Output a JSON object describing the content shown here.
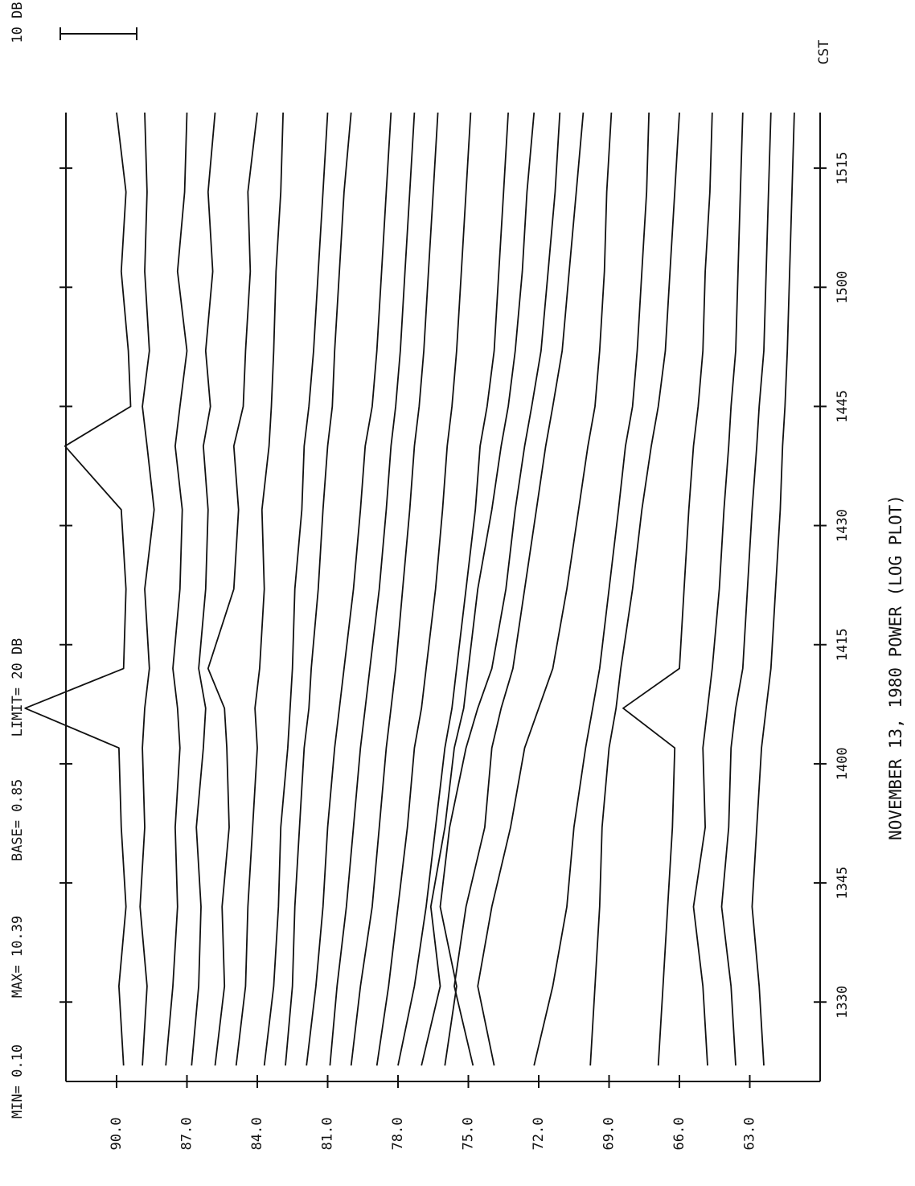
{
  "chart_data": {
    "type": "line",
    "title": "NOVEMBER 13, 1980 POWER (LOG PLOT)",
    "annotations": [
      "MIN= 0.10",
      "MAX= 10.39",
      "BASE= 0.85",
      "LIMIT= 20 DB"
    ],
    "scale_label": "10 DB",
    "time_zone": "CST",
    "x": [
      802,
      812,
      822,
      832,
      842,
      847,
      852,
      862,
      872,
      880,
      885,
      892,
      902,
      912,
      922
    ],
    "xlim": [
      800,
      922
    ],
    "xticks": [
      {
        "value": 810,
        "label": "1330"
      },
      {
        "value": 825,
        "label": "1345"
      },
      {
        "value": 840,
        "label": "1400"
      },
      {
        "value": 855,
        "label": "1415"
      },
      {
        "value": 870,
        "label": "1430"
      },
      {
        "value": 885,
        "label": "1445"
      },
      {
        "value": 900,
        "label": "1500"
      },
      {
        "value": 915,
        "label": "1515"
      }
    ],
    "ylim": [
      60.0,
      92.16
    ],
    "yticks": [
      {
        "value": 90,
        "label": "90.0"
      },
      {
        "value": 87,
        "label": "87.0"
      },
      {
        "value": 84,
        "label": "84.0"
      },
      {
        "value": 81,
        "label": "81.0"
      },
      {
        "value": 78,
        "label": "78.0"
      },
      {
        "value": 75,
        "label": "75.0"
      },
      {
        "value": 72,
        "label": "72.0"
      },
      {
        "value": 69,
        "label": "69.0"
      },
      {
        "value": 66,
        "label": "66.0"
      },
      {
        "value": 63,
        "label": "63.0"
      }
    ],
    "color": "#111111",
    "series": [
      {
        "values": [
          89.7,
          89.9,
          89.6,
          89.8,
          89.9,
          93.9,
          89.7,
          89.6,
          89.8,
          92.2,
          89.4,
          89.5,
          89.8,
          89.6,
          90.0
        ]
      },
      {
        "values": [
          88.9,
          88.7,
          89.0,
          88.8,
          88.9,
          88.8,
          88.6,
          88.8,
          88.4,
          88.7,
          88.9,
          88.6,
          88.8,
          88.7,
          88.8
        ]
      },
      {
        "values": [
          87.9,
          87.6,
          87.4,
          87.5,
          87.3,
          87.4,
          87.6,
          87.3,
          87.2,
          87.5,
          87.3,
          87.0,
          87.4,
          87.1,
          87.0
        ]
      },
      {
        "values": [
          86.8,
          86.5,
          86.4,
          86.6,
          86.3,
          86.2,
          86.5,
          86.2,
          86.1,
          86.3,
          86.0,
          86.2,
          85.9,
          86.1,
          85.8
        ]
      },
      {
        "values": [
          85.8,
          85.4,
          85.5,
          85.2,
          85.3,
          85.4,
          86.1,
          85.0,
          84.8,
          85.0,
          84.6,
          84.5,
          84.3,
          84.4,
          84.0
        ]
      },
      {
        "values": [
          84.9,
          84.5,
          84.4,
          84.2,
          84.0,
          84.1,
          83.9,
          83.7,
          83.8,
          83.5,
          83.4,
          83.3,
          83.2,
          83.0,
          82.9
        ]
      },
      {
        "values": [
          83.7,
          83.3,
          83.1,
          83.0,
          82.7,
          82.6,
          82.5,
          82.4,
          82.1,
          82.0,
          81.8,
          81.6,
          81.4,
          81.2,
          81.0
        ]
      },
      {
        "values": [
          82.8,
          82.5,
          82.4,
          82.2,
          82.0,
          81.8,
          81.7,
          81.4,
          81.2,
          81.0,
          80.8,
          80.7,
          80.5,
          80.3,
          80.0
        ]
      },
      {
        "values": [
          81.9,
          81.5,
          81.2,
          81.0,
          80.7,
          80.5,
          80.3,
          79.9,
          79.6,
          79.4,
          79.1,
          78.9,
          78.7,
          78.5,
          78.3
        ]
      },
      {
        "values": [
          80.9,
          80.6,
          80.2,
          79.9,
          79.6,
          79.4,
          79.2,
          78.8,
          78.5,
          78.3,
          78.1,
          77.9,
          77.7,
          77.5,
          77.3
        ]
      },
      {
        "values": [
          80.0,
          79.6,
          79.1,
          78.8,
          78.5,
          78.3,
          78.1,
          77.8,
          77.5,
          77.3,
          77.1,
          76.9,
          76.7,
          76.5,
          76.3
        ]
      },
      {
        "values": [
          78.9,
          78.4,
          78.0,
          77.6,
          77.3,
          77.0,
          76.8,
          76.4,
          76.1,
          75.9,
          75.7,
          75.5,
          75.3,
          75.1,
          74.9
        ]
      },
      {
        "values": [
          78.0,
          77.3,
          76.8,
          76.4,
          76.0,
          75.7,
          75.5,
          75.1,
          74.7,
          74.5,
          74.2,
          73.9,
          73.7,
          73.5,
          73.3
        ]
      },
      {
        "values": [
          77.0,
          76.2,
          76.6,
          76.0,
          75.6,
          75.2,
          75.0,
          74.6,
          74.0,
          73.6,
          73.3,
          73.0,
          72.7,
          72.5,
          72.2
        ]
      },
      {
        "values": [
          76.0,
          75.5,
          76.2,
          75.8,
          75.1,
          74.6,
          74.0,
          73.4,
          73.0,
          72.6,
          72.3,
          71.9,
          71.6,
          71.3,
          71.1
        ]
      },
      {
        "values": [
          74.8,
          75.6,
          75.1,
          74.3,
          74.0,
          73.6,
          73.1,
          72.6,
          72.1,
          71.7,
          71.4,
          71.0,
          70.7,
          70.4,
          70.1
        ]
      },
      {
        "values": [
          73.9,
          74.6,
          74.0,
          73.2,
          72.6,
          72.0,
          71.4,
          70.8,
          70.3,
          69.9,
          69.6,
          69.4,
          69.2,
          69.1,
          68.9
        ]
      },
      {
        "values": [
          72.2,
          71.4,
          70.8,
          70.5,
          70.0,
          69.7,
          69.4,
          69.0,
          68.6,
          68.3,
          68.0,
          67.8,
          67.6,
          67.4,
          67.3
        ]
      },
      {
        "values": [
          69.8,
          69.6,
          69.4,
          69.3,
          69.0,
          68.7,
          68.5,
          68.0,
          67.6,
          67.2,
          66.9,
          66.6,
          66.4,
          66.2,
          66.0
        ]
      },
      {
        "values": [
          66.9,
          66.7,
          66.5,
          66.3,
          66.2,
          68.4,
          66.0,
          65.8,
          65.6,
          65.4,
          65.2,
          65.0,
          64.9,
          64.7,
          64.6
        ]
      },
      {
        "values": [
          64.8,
          65.0,
          65.4,
          64.9,
          65.0,
          64.8,
          64.6,
          64.3,
          64.1,
          63.9,
          63.8,
          63.6,
          63.5,
          63.4,
          63.3
        ]
      },
      {
        "values": [
          63.6,
          63.8,
          64.2,
          63.9,
          63.8,
          63.6,
          63.3,
          63.1,
          62.9,
          62.7,
          62.6,
          62.4,
          62.3,
          62.2,
          62.1
        ]
      },
      {
        "values": [
          62.4,
          62.6,
          62.9,
          62.7,
          62.5,
          62.3,
          62.1,
          61.9,
          61.7,
          61.6,
          61.5,
          61.4,
          61.3,
          61.2,
          61.1
        ]
      }
    ]
  }
}
